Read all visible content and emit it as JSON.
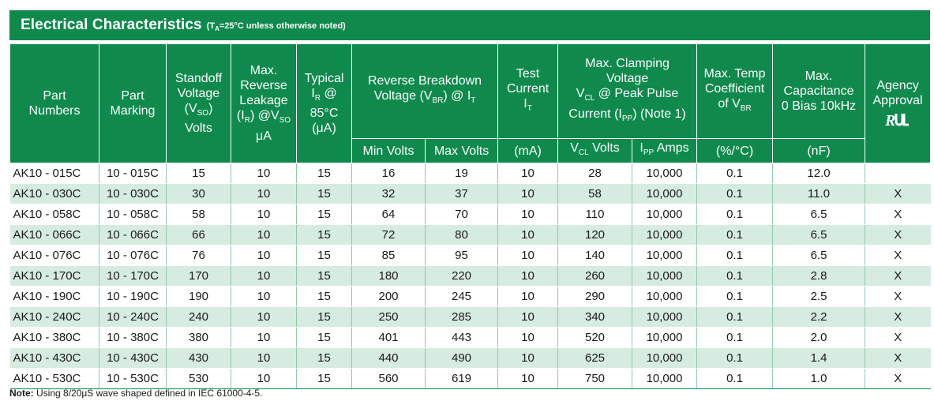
{
  "title": {
    "main": "Electrical Characteristics",
    "sub_open": "(T",
    "sub_subscript": "A",
    "sub_rest": "=25°C unless otherwise noted)"
  },
  "headers": {
    "part_numbers": [
      "Part",
      "Numbers"
    ],
    "part_marking": [
      "Part",
      "Marking"
    ],
    "standoff": [
      "Standoff",
      "Voltage",
      "(V",
      "SO",
      ")",
      "Volts"
    ],
    "leakage": [
      "Max.",
      "Reverse",
      "Leakage",
      "(I",
      "R",
      ") @V",
      "SO",
      "μA"
    ],
    "typical": [
      "Typical",
      "I",
      "R",
      " @",
      "85°C",
      "(μA)"
    ],
    "breakdown": [
      "Reverse Breakdown",
      "Voltage (V",
      "BR",
      ") @ I",
      "T"
    ],
    "test_current": [
      "Test",
      "Current",
      "I",
      "T"
    ],
    "clamping": [
      "Max. Clamping",
      "Voltage",
      "V",
      "CL",
      " @ Peak Pulse",
      "Current (I",
      "PP",
      ") (Note 1)"
    ],
    "temp_coeff": [
      "Max. Temp",
      "Coefficient",
      "of V",
      "BR"
    ],
    "capacitance": [
      "Max.",
      "Capacitance",
      "0 Bias 10kHz"
    ],
    "agency": [
      "Agency",
      "Approval"
    ],
    "sub_min": "Min Volts",
    "sub_max": "Max Volts",
    "sub_ma": "(mA)",
    "sub_vcl": [
      "V",
      "CL",
      " Volts"
    ],
    "sub_ipp": [
      "I",
      "PP",
      " Amps"
    ],
    "sub_pct": "(%/°C)",
    "sub_nf": "(nF)"
  },
  "rows": [
    [
      "AK10 - 015C",
      "10 - 015C",
      "15",
      "10",
      "15",
      "16",
      "19",
      "10",
      "28",
      "10,000",
      "0.1",
      "12.0",
      ""
    ],
    [
      "AK10 - 030C",
      "10 - 030C",
      "30",
      "10",
      "15",
      "32",
      "37",
      "10",
      "58",
      "10,000",
      "0.1",
      "11.0",
      "X"
    ],
    [
      "AK10 - 058C",
      "10 - 058C",
      "58",
      "10",
      "15",
      "64",
      "70",
      "10",
      "110",
      "10,000",
      "0.1",
      "6.5",
      "X"
    ],
    [
      "AK10 - 066C",
      "10 - 066C",
      "66",
      "10",
      "15",
      "72",
      "80",
      "10",
      "120",
      "10,000",
      "0.1",
      "6.5",
      "X"
    ],
    [
      "AK10 - 076C",
      "10 - 076C",
      "76",
      "10",
      "15",
      "85",
      "95",
      "10",
      "140",
      "10,000",
      "0.1",
      "6.5",
      "X"
    ],
    [
      "AK10 - 170C",
      "10 - 170C",
      "170",
      "10",
      "15",
      "180",
      "220",
      "10",
      "260",
      "10,000",
      "0.1",
      "2.8",
      "X"
    ],
    [
      "AK10 - 190C",
      "10 - 190C",
      "190",
      "10",
      "15",
      "200",
      "245",
      "10",
      "290",
      "10,000",
      "0.1",
      "2.5",
      "X"
    ],
    [
      "AK10 - 240C",
      "10 - 240C",
      "240",
      "10",
      "15",
      "250",
      "285",
      "10",
      "340",
      "10,000",
      "0.1",
      "2.2",
      "X"
    ],
    [
      "AK10 - 380C",
      "10 - 380C",
      "380",
      "10",
      "15",
      "401",
      "443",
      "10",
      "520",
      "10,000",
      "0.1",
      "2.0",
      "X"
    ],
    [
      "AK10 - 430C",
      "10 - 430C",
      "430",
      "10",
      "15",
      "440",
      "490",
      "10",
      "625",
      "10,000",
      "0.1",
      "1.4",
      "X"
    ],
    [
      "AK10 - 530C",
      "10 - 530C",
      "530",
      "10",
      "15",
      "560",
      "619",
      "10",
      "750",
      "10,000",
      "0.1",
      "1.0",
      "X"
    ]
  ],
  "note": {
    "label": "Note:",
    "text": " Using 8/20μS wave shaped defined in IEC 61000-4-5."
  },
  "colors": {
    "header_green": "#0f8a4c",
    "row_alt": "#d6ece0"
  },
  "icons": {
    "agency_mark": "ul-recognized-icon"
  }
}
